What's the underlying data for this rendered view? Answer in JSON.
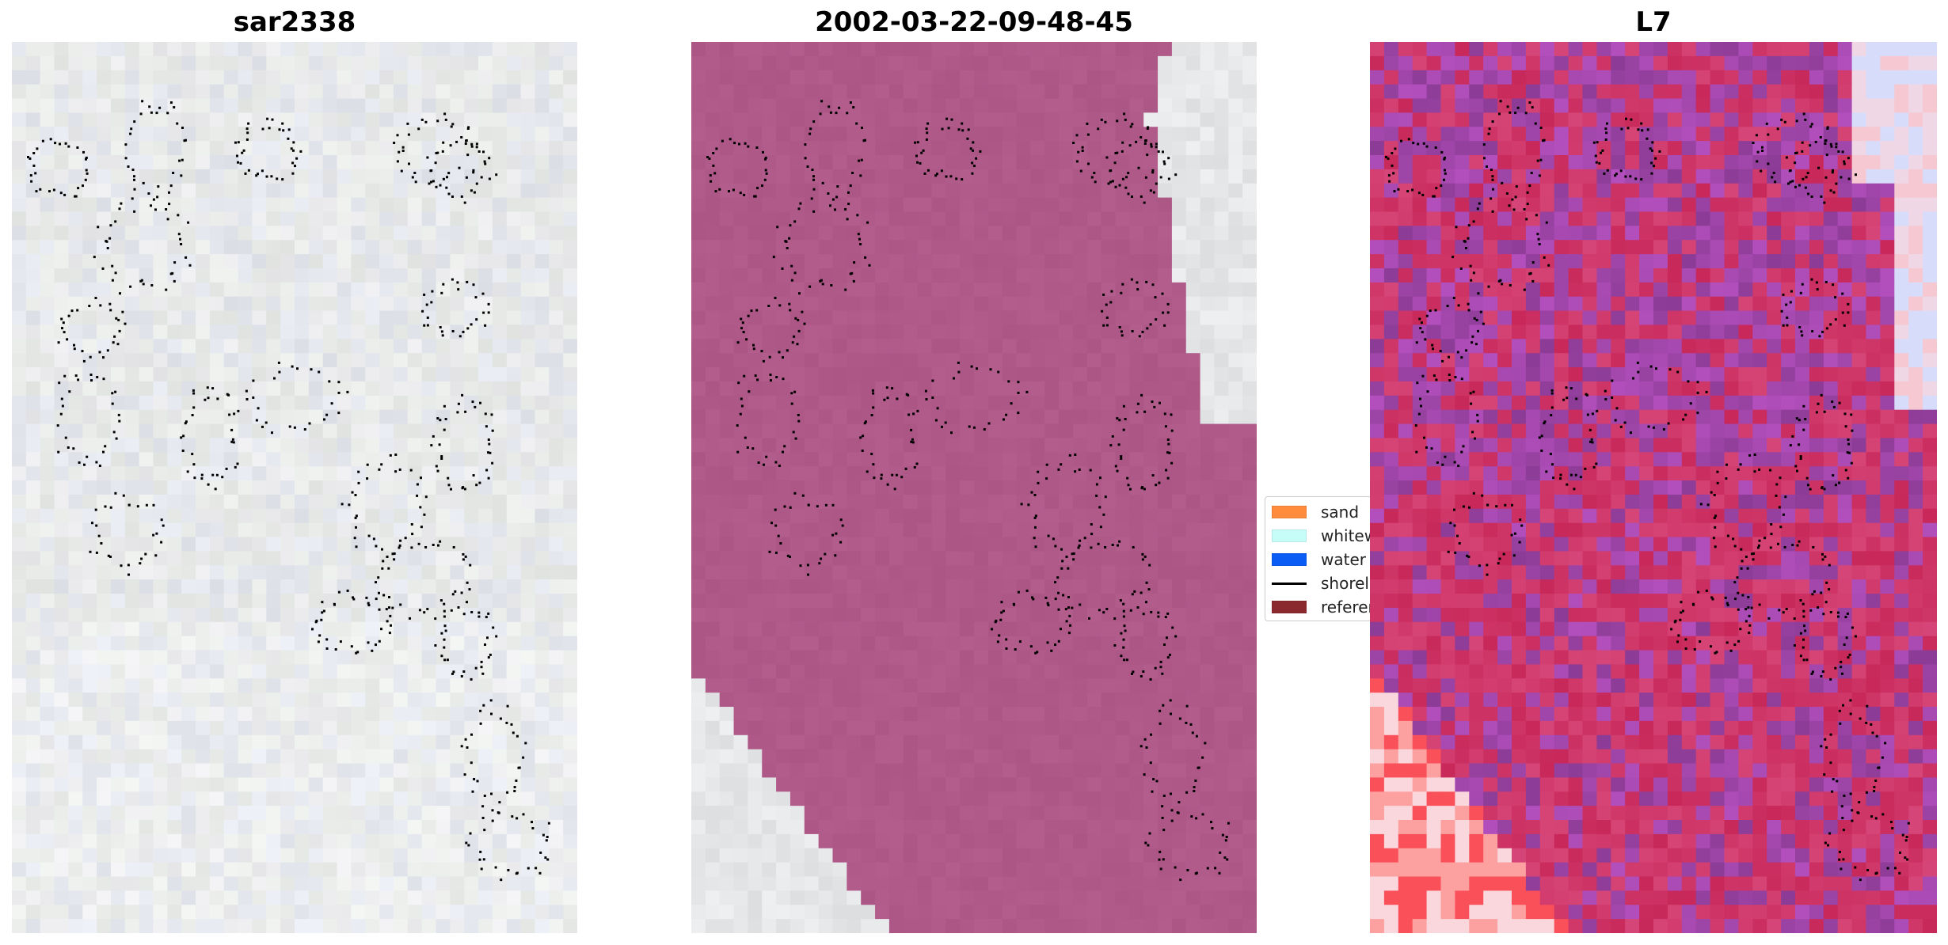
{
  "panels": [
    {
      "title": "sar2338",
      "style": "pale"
    },
    {
      "title": "2002-03-22-09-48-45",
      "style": "classified"
    },
    {
      "title": "L7",
      "style": "sensor"
    }
  ],
  "legend": {
    "items": [
      {
        "label": "sand",
        "color": "#ff8c3c",
        "kind": "patch"
      },
      {
        "label": "whitewater",
        "color": "#c6fdf9",
        "kind": "patch"
      },
      {
        "label": "water",
        "color": "#0a5cf5",
        "kind": "patch"
      },
      {
        "label": "shoreline",
        "color": "#000000",
        "kind": "line"
      },
      {
        "label": "reference",
        "color": "#8b2a2e",
        "kind": "patch"
      }
    ]
  }
}
